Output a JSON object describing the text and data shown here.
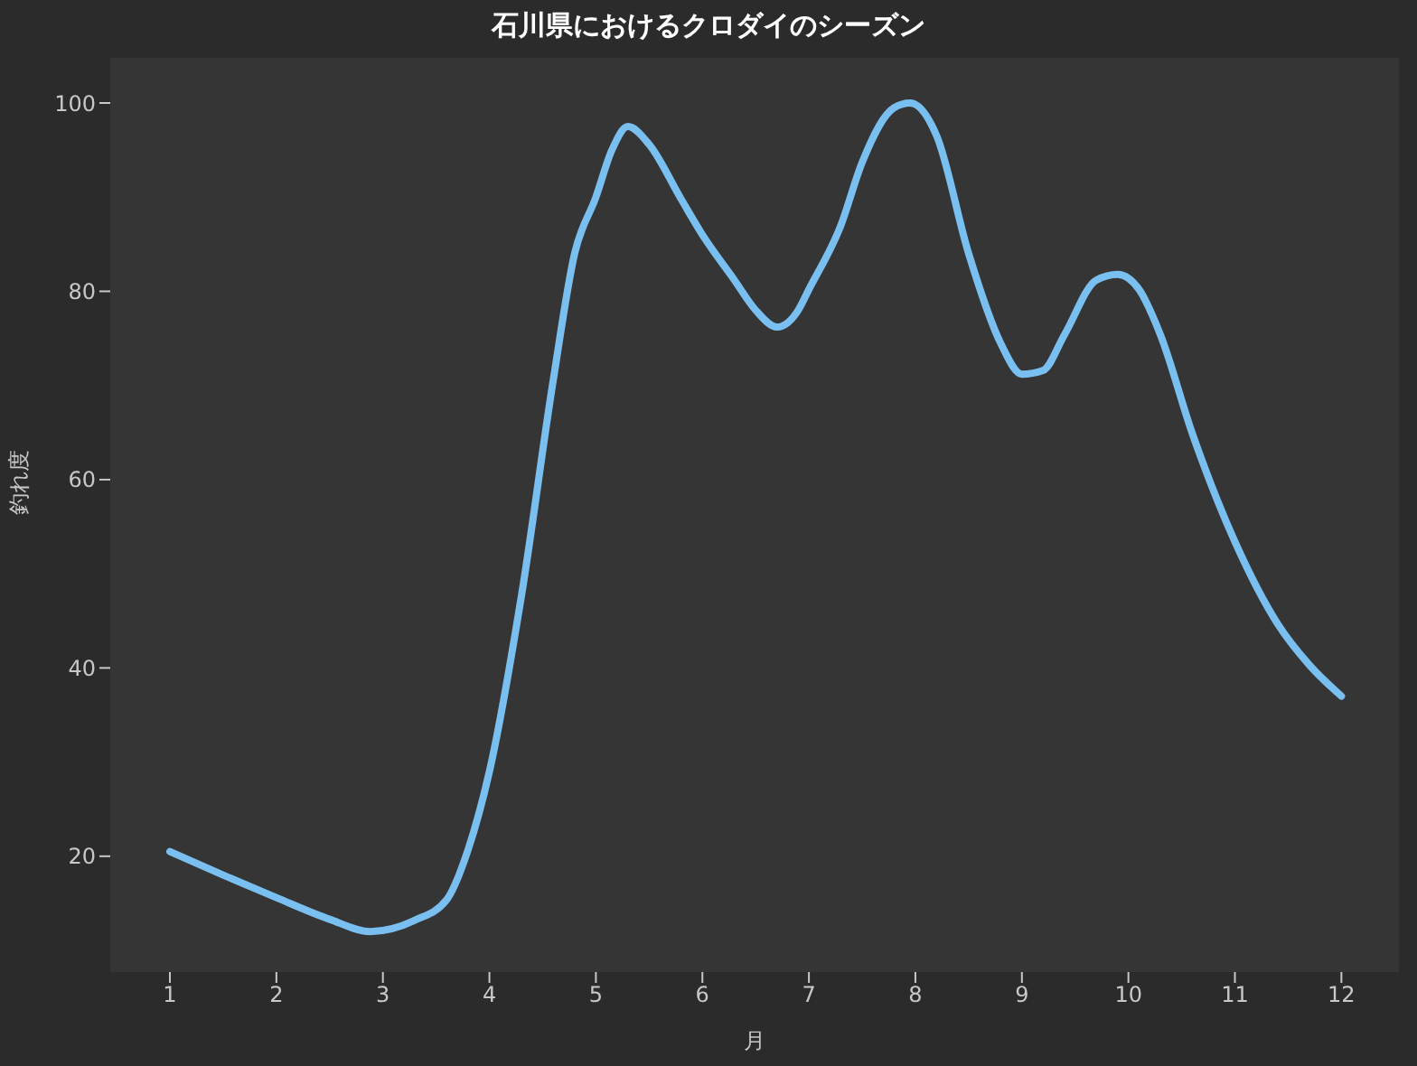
{
  "chart_data": {
    "type": "line",
    "title": "石川県におけるクロダイのシーズン",
    "xlabel": "月",
    "ylabel": "釣れ度",
    "x": [
      1,
      1.5,
      2,
      2.5,
      2.88,
      3.3,
      3.6,
      3.8,
      4,
      4.3,
      4.6,
      4.8,
      5,
      5.15,
      5.3,
      5.5,
      5.8,
      6,
      6.3,
      6.5,
      6.7,
      6.9,
      7,
      7.3,
      7.5,
      7.8,
      7.95,
      8.2,
      8.5,
      8.8,
      9,
      9.2,
      9.4,
      9.7,
      9.9,
      10.1,
      10.3,
      10.6,
      11,
      11.4,
      11.7,
      12
    ],
    "series": [
      {
        "color": "#79bff0",
        "values": [
          20.5,
          18,
          15.6,
          13.3,
          12,
          13.2,
          15.4,
          20.7,
          29,
          47.6,
          70.6,
          84,
          90,
          95,
          97.5,
          95.6,
          89.8,
          86,
          81.2,
          78,
          76.2,
          78,
          80.2,
          87,
          93.7,
          99.5,
          100,
          96.5,
          84,
          74.5,
          71.2,
          71.6,
          75.4,
          81.2,
          81.8,
          80.2,
          75.4,
          64.9,
          53.4,
          44.7,
          40.3,
          37
        ]
      }
    ],
    "xlim": [
      0.44,
      12.54
    ],
    "ylim": [
      7.7,
      104.8
    ],
    "xticks": [
      1,
      2,
      3,
      4,
      5,
      6,
      7,
      8,
      9,
      10,
      11,
      12
    ],
    "yticks": [
      20,
      40,
      60,
      80,
      100
    ],
    "grid": false,
    "legend": false,
    "marker": "none",
    "line_style": "solid"
  }
}
